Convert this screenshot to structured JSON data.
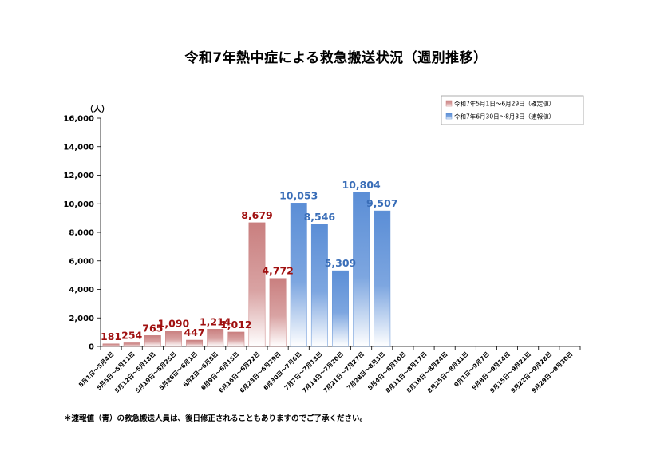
{
  "page": {
    "title": "令和7年熱中症による救急搬送状況（週別推移）",
    "footnote": "＊速報値（青）の救急搬送人員は、後日修正されることもありますのでご了承ください。"
  },
  "colors": {
    "confirmed": "#c97f7f",
    "confirmed_label": "#a01010",
    "preliminary": "#5b8ed6",
    "preliminary_label": "#3a6eb8"
  },
  "chart_data": {
    "type": "bar",
    "title": "令和7年熱中症による救急搬送状況（週別推移）",
    "ylabel": "（人）",
    "ylim": [
      0,
      16000
    ],
    "yticks": [
      "0",
      "2,000",
      "4,000",
      "6,000",
      "8,000",
      "10,000",
      "12,000",
      "14,000",
      "16,000"
    ],
    "ytick_values": [
      0,
      2000,
      4000,
      6000,
      8000,
      10000,
      12000,
      14000,
      16000
    ],
    "grid": false,
    "legend_position": "top-right",
    "categories": [
      "5月1日～5月4日",
      "5月5日～5月11日",
      "5月12日～5月18日",
      "5月19日～5月25日",
      "5月26日～6月1日",
      "6月2日～6月8日",
      "6月9日～6月15日",
      "6月16日～6月22日",
      "6月23日～6月29日",
      "6月30日～7月6日",
      "7月7日～7月13日",
      "7月14日～7月20日",
      "7月21日～7月27日",
      "7月28日～8月3日",
      "8月4日～8月10日",
      "8月11日～8月17日",
      "8月18日～8月24日",
      "8月25日～8月31日",
      "9月1日～9月7日",
      "9月8日～9月14日",
      "9月15日～9月21日",
      "9月22日～9月28日",
      "9月29日～9月30日"
    ],
    "series": [
      {
        "name": "令和7年5月1日～6月29日（確定値）",
        "color": "#c97f7f",
        "values": [
          181,
          254,
          765,
          1090,
          447,
          1214,
          1012,
          8679,
          4772,
          null,
          null,
          null,
          null,
          null,
          null,
          null,
          null,
          null,
          null,
          null,
          null,
          null,
          null
        ],
        "labels": [
          "181",
          "254",
          "765",
          "1,090",
          "447",
          "1,214",
          "1,012",
          "8,679",
          "4,772"
        ]
      },
      {
        "name": "令和7年6月30日～8月3日（速報値）",
        "color": "#5b8ed6",
        "values": [
          null,
          null,
          null,
          null,
          null,
          null,
          null,
          null,
          null,
          10053,
          8546,
          5309,
          10804,
          9507,
          null,
          null,
          null,
          null,
          null,
          null,
          null,
          null,
          null
        ],
        "labels": [
          "10,053",
          "8,546",
          "5,309",
          "10,804",
          "9,507"
        ]
      }
    ]
  }
}
